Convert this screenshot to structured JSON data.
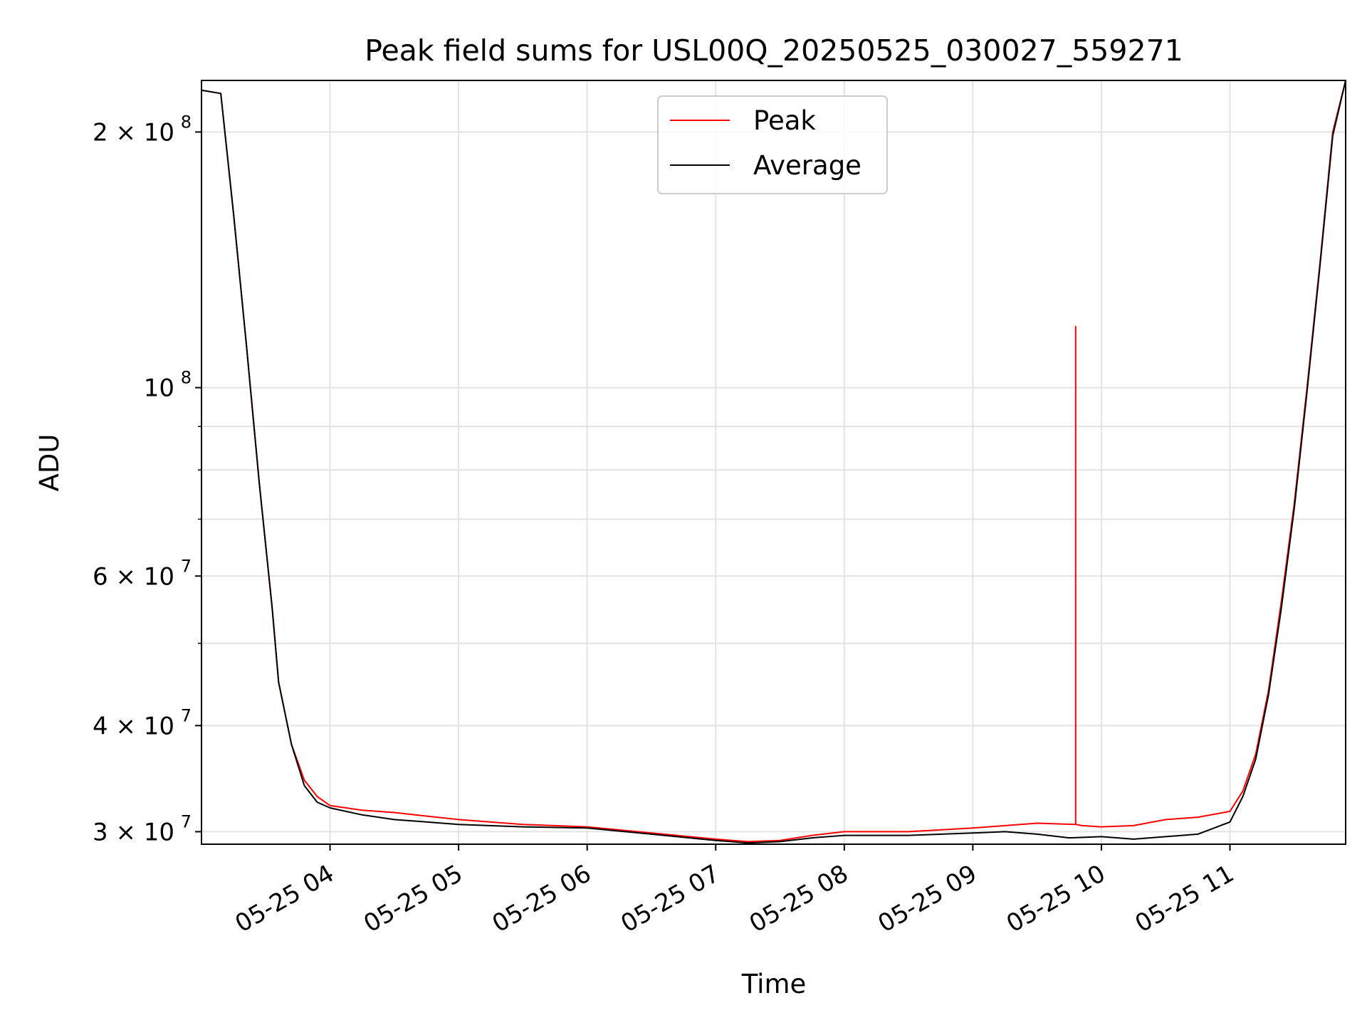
{
  "chart_data": {
    "type": "line",
    "title": "Peak field sums for USL00Q_20250525_030027_559271",
    "xlabel": "Time",
    "ylabel": "ADU",
    "x_unit": "hours (UTC, 2025-05-25)",
    "xlim": [
      3.0,
      11.9
    ],
    "ylim": [
      29000000,
      230000000
    ],
    "y_scale": "log",
    "grid": true,
    "legend_position": "upper center",
    "x_ticks": [
      {
        "value": 4,
        "label": "05-25 04"
      },
      {
        "value": 5,
        "label": "05-25 05"
      },
      {
        "value": 6,
        "label": "05-25 06"
      },
      {
        "value": 7,
        "label": "05-25 07"
      },
      {
        "value": 8,
        "label": "05-25 08"
      },
      {
        "value": 9,
        "label": "05-25 09"
      },
      {
        "value": 10,
        "label": "05-25 10"
      },
      {
        "value": 11,
        "label": "05-25 11"
      }
    ],
    "y_ticks": [
      {
        "value": 30000000,
        "base": "3 × 10",
        "exp": "7"
      },
      {
        "value": 40000000,
        "base": "4 × 10",
        "exp": "7"
      },
      {
        "value": 60000000,
        "base": "6 × 10",
        "exp": "7"
      },
      {
        "value": 100000000,
        "base": "10",
        "exp": "8"
      },
      {
        "value": 200000000,
        "base": "2 × 10",
        "exp": "8"
      }
    ],
    "y_minor_ticks": [
      50000000,
      70000000,
      80000000,
      90000000
    ],
    "series": [
      {
        "name": "Peak",
        "color": "#ff0000",
        "x": [
          3.0,
          3.15,
          3.25,
          3.35,
          3.45,
          3.55,
          3.6,
          3.7,
          3.8,
          3.9,
          4.0,
          4.25,
          4.5,
          4.75,
          5.0,
          5.5,
          6.0,
          6.5,
          7.0,
          7.25,
          7.5,
          7.75,
          8.0,
          8.5,
          9.0,
          9.25,
          9.5,
          9.8,
          9.8,
          9.8,
          9.85,
          10.0,
          10.25,
          10.5,
          10.75,
          11.0,
          11.1,
          11.2,
          11.3,
          11.4,
          11.5,
          11.6,
          11.7,
          11.8,
          11.9
        ],
        "y": [
          224000000,
          222000000,
          160000000,
          112000000,
          77000000,
          55000000,
          45000000,
          38000000,
          34500000,
          33000000,
          32200000,
          31800000,
          31600000,
          31300000,
          31000000,
          30600000,
          30400000,
          29900000,
          29400000,
          29200000,
          29300000,
          29700000,
          30000000,
          30000000,
          30300000,
          30500000,
          30700000,
          30600000,
          118000000,
          30600000,
          30500000,
          30400000,
          30500000,
          31000000,
          31200000,
          31700000,
          33500000,
          37000000,
          44000000,
          56000000,
          73000000,
          100000000,
          140000000,
          200000000,
          230000000
        ]
      },
      {
        "name": "Average",
        "color": "#000000",
        "x": [
          3.0,
          3.15,
          3.25,
          3.35,
          3.45,
          3.55,
          3.6,
          3.7,
          3.8,
          3.9,
          4.0,
          4.25,
          4.5,
          4.75,
          5.0,
          5.5,
          6.0,
          6.5,
          7.0,
          7.25,
          7.5,
          7.75,
          8.0,
          8.5,
          9.0,
          9.25,
          9.5,
          9.75,
          10.0,
          10.25,
          10.5,
          10.75,
          11.0,
          11.1,
          11.2,
          11.3,
          11.4,
          11.5,
          11.6,
          11.7,
          11.8,
          11.9
        ],
        "y": [
          224000000,
          222000000,
          160000000,
          112000000,
          77000000,
          55000000,
          45000000,
          38000000,
          34000000,
          32500000,
          32000000,
          31400000,
          31000000,
          30800000,
          30600000,
          30400000,
          30300000,
          29800000,
          29300000,
          29100000,
          29200000,
          29500000,
          29700000,
          29700000,
          29900000,
          30000000,
          29800000,
          29500000,
          29600000,
          29400000,
          29600000,
          29800000,
          30800000,
          33000000,
          36500000,
          43500000,
          55000000,
          72000000,
          99000000,
          139000000,
          198000000,
          230000000
        ]
      }
    ]
  }
}
